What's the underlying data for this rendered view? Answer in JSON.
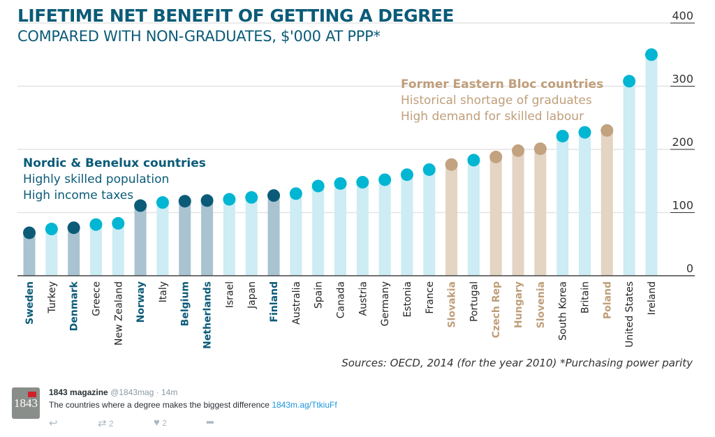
{
  "title": "LIFETIME NET BENEFIT OF GETTING A DEGREE",
  "subtitle": "COMPARED WITH NON-GRADUATES, $'000 AT PPP*",
  "annotations": {
    "nordic": {
      "title": "Nordic & Benelux countries",
      "line1": "Highly skilled population",
      "line2": "High income taxes"
    },
    "eastern": {
      "title": "Former Eastern Bloc countries",
      "line1": "Historical shortage of graduates",
      "line2": "High demand for skilled labour"
    }
  },
  "source": "Sources: OECD, 2014 (for the year 2010)   *Purchasing power parity",
  "colors": {
    "title": "#0b5b78",
    "nordic_dot": "#0b5b78",
    "nordic_bar": "#a9c3d1",
    "other_dot": "#00b6d2",
    "other_bar": "#cdecf4",
    "eastern_dot": "#c2a27f",
    "eastern_bar": "#e4d4c3"
  },
  "chart_data": {
    "type": "bar",
    "title": "LIFETIME NET BENEFIT OF GETTING A DEGREE",
    "ylabel": "$'000 at PPP",
    "ylim": [
      0,
      400
    ],
    "yticks": [
      0,
      100,
      200,
      300,
      400
    ],
    "grid": true,
    "categories": [
      "Sweden",
      "Turkey",
      "Denmark",
      "Greece",
      "New Zealand",
      "Norway",
      "Italy",
      "Belgium",
      "Netherlands",
      "Israel",
      "Japan",
      "Finland",
      "Australia",
      "Spain",
      "Canada",
      "Austria",
      "Germany",
      "Estonia",
      "France",
      "Slovakia",
      "Portugal",
      "Czech Rep",
      "Hungary",
      "Slovenia",
      "South Korea",
      "Britain",
      "Poland",
      "United States",
      "Ireland"
    ],
    "values": [
      68,
      74,
      76,
      81,
      83,
      111,
      116,
      118,
      119,
      121,
      124,
      127,
      130,
      142,
      146,
      148,
      152,
      160,
      168,
      176,
      183,
      188,
      198,
      201,
      221,
      227,
      230,
      308,
      350
    ],
    "groups": [
      "nordic",
      "other",
      "nordic",
      "other",
      "other",
      "nordic",
      "other",
      "nordic",
      "nordic",
      "other",
      "other",
      "nordic",
      "other",
      "other",
      "other",
      "other",
      "other",
      "other",
      "other",
      "eastern",
      "other",
      "eastern",
      "eastern",
      "eastern",
      "other",
      "other",
      "eastern",
      "other",
      "other"
    ]
  },
  "tweet": {
    "name": "1843 magazine",
    "handle": "@1843mag",
    "time": "14m",
    "text": "The countries where a degree makes the biggest difference",
    "link": "1843m.ag/TtkiuFf",
    "retweets": "2",
    "likes": "2",
    "avatar_text": "1843"
  }
}
